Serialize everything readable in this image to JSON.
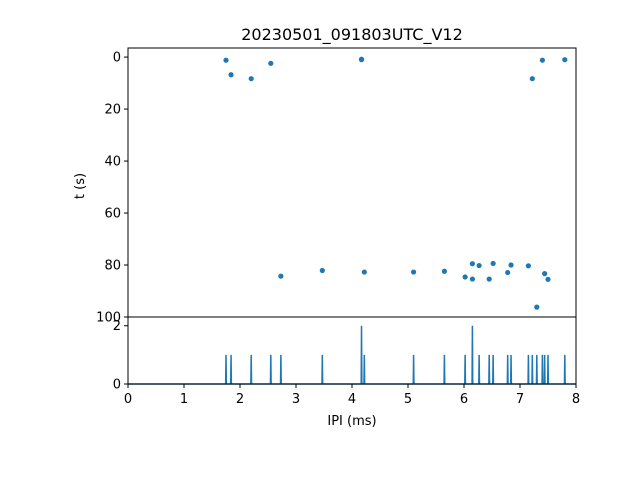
{
  "chart_data": [
    {
      "type": "scatter",
      "title": "20230501_091803UTC_V12",
      "xlabel": "",
      "ylabel": "t (s)",
      "xlim": [
        0,
        8
      ],
      "ylim": [
        100,
        -3.5
      ],
      "y_inverted": true,
      "yticks": [
        0,
        20,
        40,
        60,
        80,
        100
      ],
      "grid": false,
      "color": "#1f77b4",
      "series": [
        {
          "x": [
            1.75,
            1.84,
            2.2,
            2.55,
            2.73,
            3.47,
            4.17,
            4.17,
            4.22,
            5.1,
            5.65,
            6.02,
            6.15,
            6.15,
            6.27,
            6.45,
            6.52,
            6.78,
            6.84,
            7.15,
            7.22,
            7.3,
            7.4,
            7.44,
            7.5,
            7.8
          ],
          "y": [
            1.2,
            6.8,
            8.3,
            2.4,
            84.3,
            82.1,
            0.8,
            1.0,
            82.7,
            82.7,
            82.4,
            84.6,
            79.5,
            85.4,
            80.2,
            85.4,
            79.4,
            82.9,
            80.0,
            80.3,
            8.3,
            96.2,
            1.2,
            83.3,
            85.5,
            1.0
          ]
        }
      ]
    },
    {
      "type": "line",
      "title": "",
      "xlabel": "IPI (ms)",
      "ylabel": "",
      "xlim": [
        0,
        8
      ],
      "ylim": [
        0,
        2.3
      ],
      "xticks": [
        0,
        1,
        2,
        3,
        4,
        5,
        6,
        7,
        8
      ],
      "yticks": [
        0,
        2
      ],
      "grid": false,
      "color": "#1f77b4",
      "spikes": [
        {
          "x": 1.75,
          "count": 1
        },
        {
          "x": 1.84,
          "count": 1
        },
        {
          "x": 2.2,
          "count": 1
        },
        {
          "x": 2.55,
          "count": 1
        },
        {
          "x": 2.73,
          "count": 1
        },
        {
          "x": 3.47,
          "count": 1
        },
        {
          "x": 4.17,
          "count": 2
        },
        {
          "x": 4.22,
          "count": 1
        },
        {
          "x": 5.1,
          "count": 1
        },
        {
          "x": 5.65,
          "count": 1
        },
        {
          "x": 6.02,
          "count": 1
        },
        {
          "x": 6.15,
          "count": 2
        },
        {
          "x": 6.27,
          "count": 1
        },
        {
          "x": 6.45,
          "count": 1
        },
        {
          "x": 6.52,
          "count": 1
        },
        {
          "x": 6.78,
          "count": 1
        },
        {
          "x": 6.84,
          "count": 1
        },
        {
          "x": 7.15,
          "count": 1
        },
        {
          "x": 7.22,
          "count": 1
        },
        {
          "x": 7.3,
          "count": 1
        },
        {
          "x": 7.4,
          "count": 1
        },
        {
          "x": 7.44,
          "count": 1
        },
        {
          "x": 7.5,
          "count": 1
        },
        {
          "x": 7.8,
          "count": 1
        }
      ]
    }
  ]
}
